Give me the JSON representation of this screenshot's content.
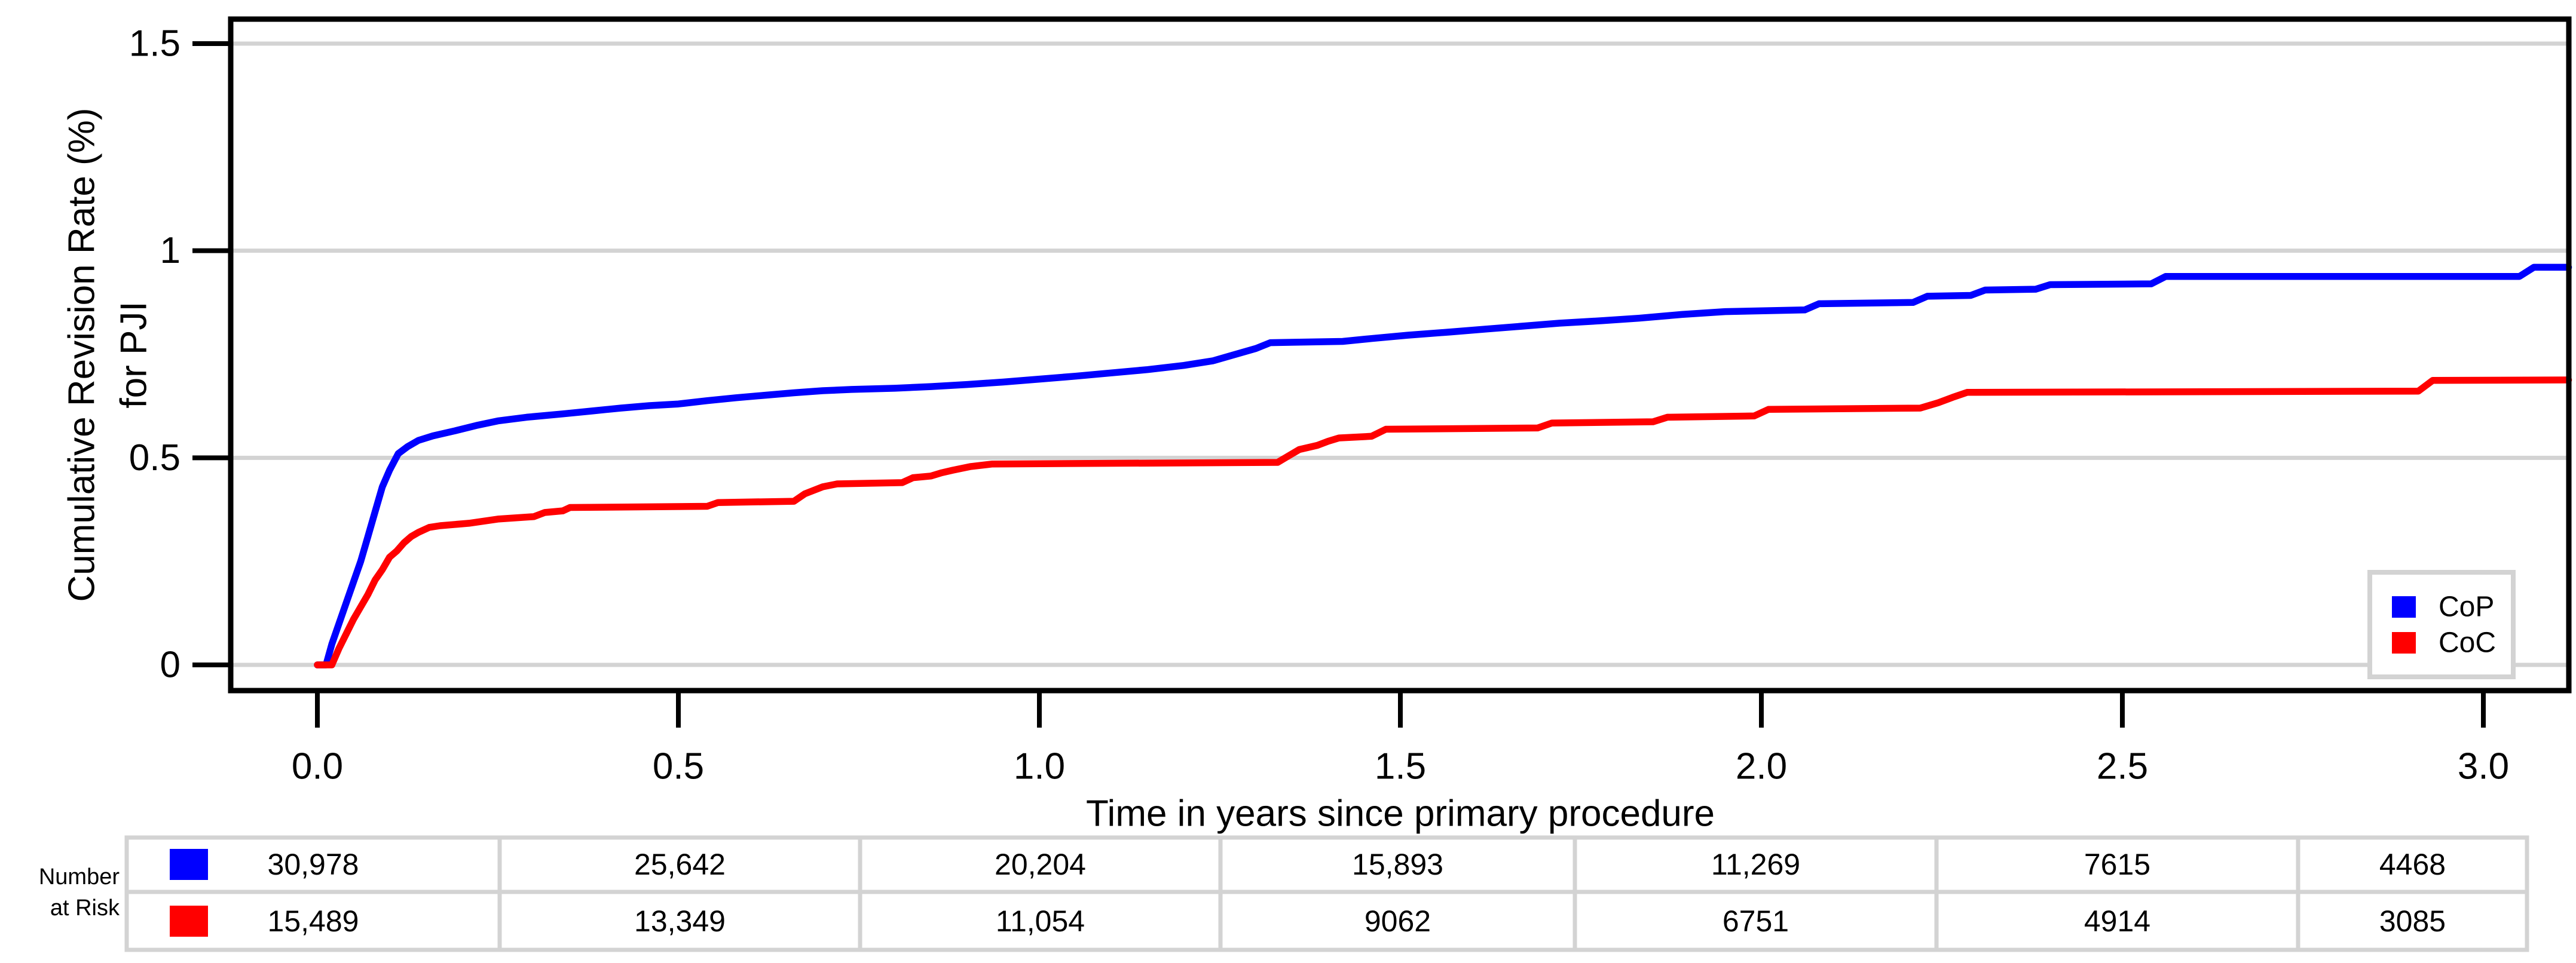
{
  "chart_data": {
    "type": "line",
    "title": "",
    "xlabel": "Time in years since primary procedure",
    "ylabel_line1": "Cumulative Revision Rate (%)",
    "ylabel_line2": "for PJI",
    "xlim": [
      -0.12,
      3.12
    ],
    "ylim": [
      -0.075,
      1.62
    ],
    "grid": true,
    "background_color": "#ffffff",
    "gridline_color": "#d3d3d3",
    "axis_color": "#000000",
    "x_ticks": [
      {
        "value": 0.0,
        "label": "0.0"
      },
      {
        "value": 0.5,
        "label": "0.5"
      },
      {
        "value": 1.0,
        "label": "1.0"
      },
      {
        "value": 1.5,
        "label": "1.5"
      },
      {
        "value": 2.0,
        "label": "2.0"
      },
      {
        "value": 2.5,
        "label": "2.5"
      },
      {
        "value": 3.0,
        "label": "3.0"
      }
    ],
    "y_ticks": [
      {
        "value": 0.0,
        "label": "0"
      },
      {
        "value": 0.5,
        "label": "0.5"
      },
      {
        "value": 1.0,
        "label": "1"
      },
      {
        "value": 1.5,
        "label": "1.5"
      }
    ],
    "legend": {
      "position": "bottom-right",
      "items": [
        {
          "name": "CoP",
          "color": "#0000ff"
        },
        {
          "name": "CoC",
          "color": "#ff0000"
        }
      ]
    },
    "series": [
      {
        "name": "CoP",
        "color": "#0000ff",
        "points": [
          [
            0,
            0
          ],
          [
            0.012,
            0
          ],
          [
            0.02,
            0.05
          ],
          [
            0.03,
            0.1
          ],
          [
            0.04,
            0.15
          ],
          [
            0.05,
            0.2
          ],
          [
            0.06,
            0.25
          ],
          [
            0.07,
            0.31
          ],
          [
            0.08,
            0.37
          ],
          [
            0.09,
            0.43
          ],
          [
            0.1,
            0.47
          ],
          [
            0.112,
            0.51
          ],
          [
            0.125,
            0.527
          ],
          [
            0.14,
            0.542
          ],
          [
            0.16,
            0.553
          ],
          [
            0.19,
            0.565
          ],
          [
            0.22,
            0.578
          ],
          [
            0.25,
            0.589
          ],
          [
            0.29,
            0.598
          ],
          [
            0.34,
            0.606
          ],
          [
            0.38,
            0.613
          ],
          [
            0.42,
            0.62
          ],
          [
            0.46,
            0.626
          ],
          [
            0.5,
            0.63
          ],
          [
            0.54,
            0.638
          ],
          [
            0.58,
            0.645
          ],
          [
            0.62,
            0.651
          ],
          [
            0.66,
            0.657
          ],
          [
            0.7,
            0.662
          ],
          [
            0.74,
            0.665
          ],
          [
            0.8,
            0.668
          ],
          [
            0.85,
            0.672
          ],
          [
            0.9,
            0.677
          ],
          [
            0.95,
            0.683
          ],
          [
            1.0,
            0.69
          ],
          [
            1.05,
            0.697
          ],
          [
            1.1,
            0.705
          ],
          [
            1.15,
            0.713
          ],
          [
            1.2,
            0.723
          ],
          [
            1.24,
            0.734
          ],
          [
            1.27,
            0.749
          ],
          [
            1.3,
            0.764
          ],
          [
            1.32,
            0.778
          ],
          [
            1.42,
            0.781
          ],
          [
            1.46,
            0.788
          ],
          [
            1.51,
            0.796
          ],
          [
            1.57,
            0.804
          ],
          [
            1.62,
            0.811
          ],
          [
            1.67,
            0.818
          ],
          [
            1.72,
            0.825
          ],
          [
            1.78,
            0.831
          ],
          [
            1.83,
            0.837
          ],
          [
            1.89,
            0.846
          ],
          [
            1.95,
            0.853
          ],
          [
            2.06,
            0.857
          ],
          [
            2.08,
            0.872
          ],
          [
            2.21,
            0.875
          ],
          [
            2.23,
            0.89
          ],
          [
            2.29,
            0.892
          ],
          [
            2.31,
            0.905
          ],
          [
            2.38,
            0.907
          ],
          [
            2.4,
            0.918
          ],
          [
            2.54,
            0.92
          ],
          [
            2.56,
            0.938
          ],
          [
            3.05,
            0.938
          ],
          [
            3.07,
            0.96
          ],
          [
            3.118,
            0.96
          ]
        ]
      },
      {
        "name": "CoC",
        "color": "#ff0000",
        "points": [
          [
            0,
            0
          ],
          [
            0.02,
            0
          ],
          [
            0.03,
            0.04
          ],
          [
            0.04,
            0.075
          ],
          [
            0.05,
            0.11
          ],
          [
            0.06,
            0.14
          ],
          [
            0.07,
            0.17
          ],
          [
            0.08,
            0.205
          ],
          [
            0.09,
            0.23
          ],
          [
            0.1,
            0.26
          ],
          [
            0.11,
            0.275
          ],
          [
            0.12,
            0.295
          ],
          [
            0.13,
            0.31
          ],
          [
            0.14,
            0.32
          ],
          [
            0.155,
            0.332
          ],
          [
            0.17,
            0.336
          ],
          [
            0.21,
            0.342
          ],
          [
            0.25,
            0.352
          ],
          [
            0.3,
            0.358
          ],
          [
            0.315,
            0.368
          ],
          [
            0.34,
            0.372
          ],
          [
            0.35,
            0.38
          ],
          [
            0.54,
            0.383
          ],
          [
            0.555,
            0.392
          ],
          [
            0.66,
            0.395
          ],
          [
            0.675,
            0.413
          ],
          [
            0.7,
            0.43
          ],
          [
            0.72,
            0.437
          ],
          [
            0.81,
            0.44
          ],
          [
            0.825,
            0.452
          ],
          [
            0.85,
            0.456
          ],
          [
            0.865,
            0.464
          ],
          [
            0.88,
            0.47
          ],
          [
            0.905,
            0.479
          ],
          [
            0.935,
            0.485
          ],
          [
            1.33,
            0.489
          ],
          [
            1.36,
            0.52
          ],
          [
            1.385,
            0.53
          ],
          [
            1.4,
            0.54
          ],
          [
            1.415,
            0.548
          ],
          [
            1.46,
            0.552
          ],
          [
            1.48,
            0.569
          ],
          [
            1.69,
            0.572
          ],
          [
            1.71,
            0.584
          ],
          [
            1.85,
            0.587
          ],
          [
            1.87,
            0.598
          ],
          [
            1.99,
            0.601
          ],
          [
            2.01,
            0.617
          ],
          [
            2.22,
            0.62
          ],
          [
            2.245,
            0.633
          ],
          [
            2.265,
            0.646
          ],
          [
            2.285,
            0.658
          ],
          [
            2.91,
            0.661
          ],
          [
            2.93,
            0.687
          ],
          [
            3.118,
            0.688
          ]
        ]
      }
    ],
    "number_at_risk": {
      "header_line1": "Number",
      "header_line2": "at Risk",
      "columns": [
        0.0,
        0.5,
        1.0,
        1.5,
        2.0,
        2.5,
        3.0
      ],
      "rows": [
        {
          "series": "CoP",
          "color": "#0000ff",
          "values": [
            "30,978",
            "25,642",
            "20,204",
            "15,893",
            "11,269",
            "7615",
            "4468"
          ]
        },
        {
          "series": "CoC",
          "color": "#ff0000",
          "values": [
            "15,489",
            "13,349",
            "11,054",
            "9062",
            "6751",
            "4914",
            "3085"
          ]
        }
      ]
    }
  }
}
